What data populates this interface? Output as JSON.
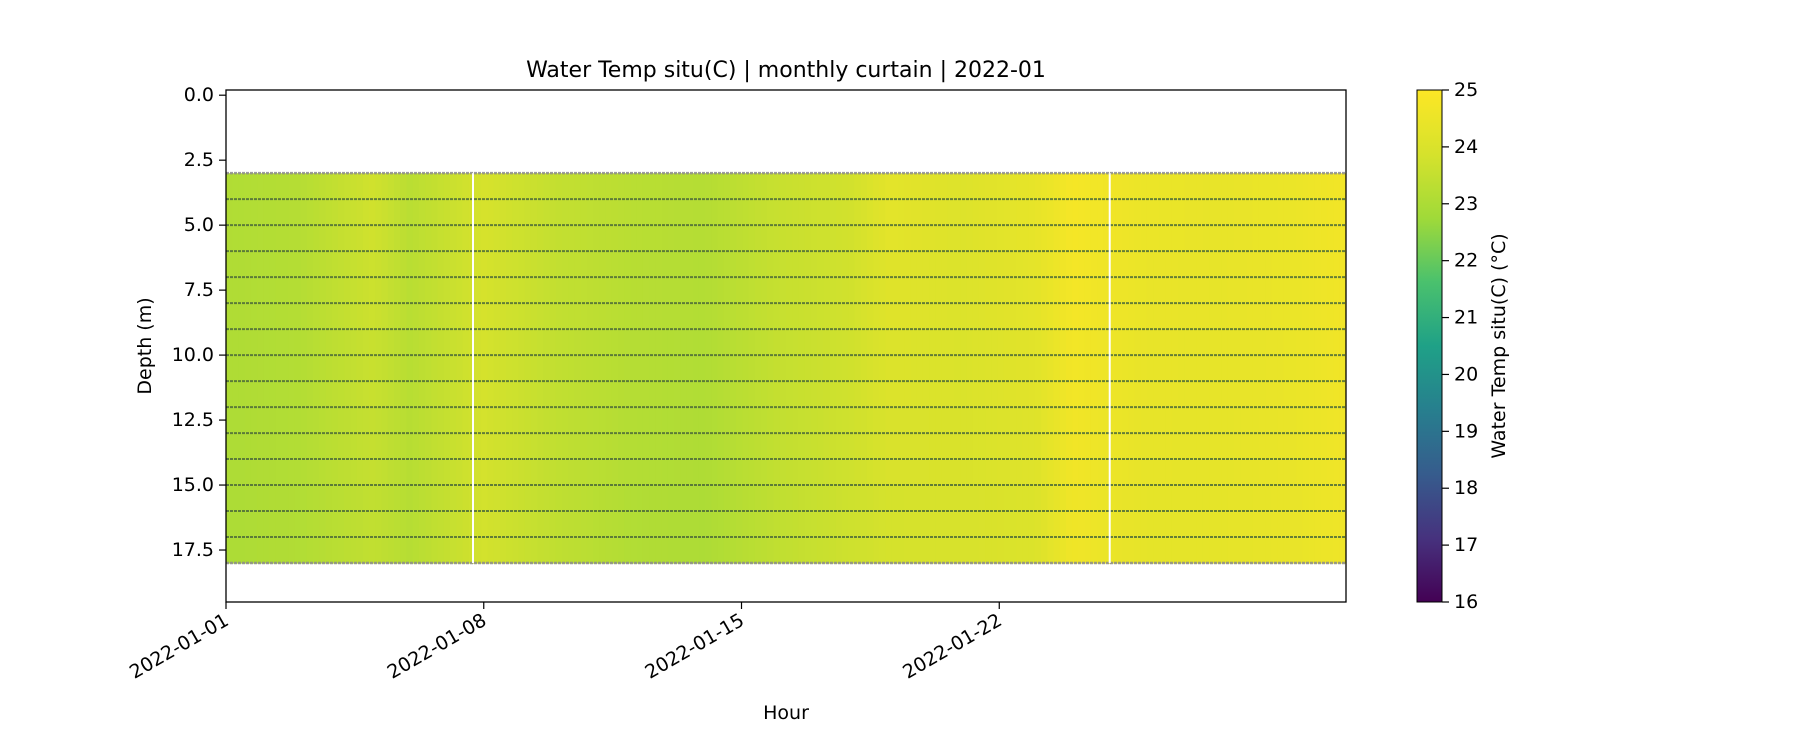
{
  "chart_data": {
    "type": "heatmap",
    "title": "Water Temp situ(C) | monthly curtain | 2022-01",
    "xlabel": "Hour",
    "ylabel": "Depth (m)",
    "x_range": [
      "2022-01-01",
      "2022-01-31T10:00"
    ],
    "y_range": [
      19.5,
      -0.2
    ],
    "y_inverted": true,
    "x_ticks": [
      "2022-01-01",
      "2022-01-08",
      "2022-01-15",
      "2022-01-22"
    ],
    "y_ticks": [
      "0.0",
      "2.5",
      "5.0",
      "7.5",
      "10.0",
      "12.5",
      "15.0",
      "17.5"
    ],
    "colorbar": {
      "label": "Water Temp situ(C) (°C)",
      "colormap": "viridis",
      "range": [
        16,
        25
      ],
      "ticks": [
        "16",
        "17",
        "18",
        "19",
        "20",
        "21",
        "22",
        "23",
        "24",
        "25"
      ]
    },
    "data_depth_range_m": [
      3.0,
      18.0
    ],
    "sensor_depths_m": [
      3,
      4,
      5,
      6,
      7,
      8,
      9,
      10,
      11,
      12,
      13,
      14,
      15,
      16,
      17,
      18
    ],
    "temperature_profile": {
      "dates": [
        "2022-01-01",
        "2022-01-03",
        "2022-01-05",
        "2022-01-06",
        "2022-01-08",
        "2022-01-10",
        "2022-01-12",
        "2022-01-14",
        "2022-01-16",
        "2022-01-18",
        "2022-01-19",
        "2022-01-21",
        "2022-01-23",
        "2022-01-24",
        "2022-01-26",
        "2022-01-28",
        "2022-01-30",
        "2022-01-31T10:00"
      ],
      "surface_temp_C": [
        23.1,
        23.2,
        23.8,
        23.3,
        23.9,
        23.5,
        23.3,
        23.2,
        23.6,
        23.8,
        24.3,
        24.1,
        24.4,
        24.8,
        24.5,
        24.4,
        24.5,
        24.7
      ],
      "bottom_temp_C": [
        23.0,
        23.1,
        23.4,
        23.2,
        23.8,
        23.4,
        23.1,
        23.0,
        23.4,
        23.7,
        23.8,
        23.9,
        24.0,
        24.6,
        24.3,
        24.3,
        24.4,
        24.6
      ]
    },
    "gaps": [
      "2022-01-07T17:00",
      "2022-01-25T00:00"
    ],
    "grid": false,
    "legend": "none"
  }
}
